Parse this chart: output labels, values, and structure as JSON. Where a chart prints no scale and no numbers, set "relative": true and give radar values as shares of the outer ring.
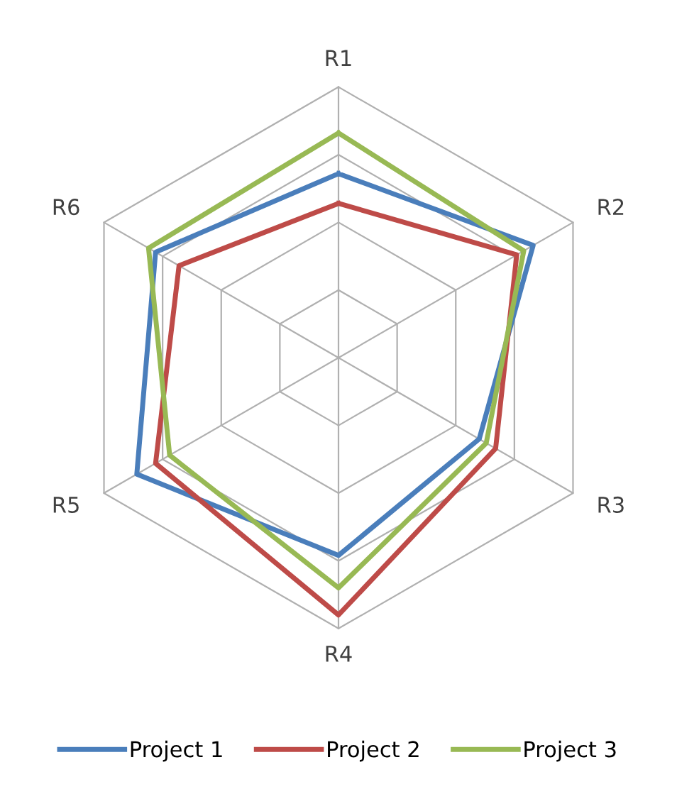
{
  "chart_data": {
    "type": "radar",
    "relative": true,
    "grid": true,
    "legend": "bottom",
    "categories": [
      "R1",
      "R2",
      "R3",
      "R4",
      "R5",
      "R6"
    ],
    "series": [
      {
        "name": "Project 1",
        "color": "#4a7ebb",
        "values": [
          0.68,
          0.83,
          0.6,
          0.73,
          0.86,
          0.78
        ]
      },
      {
        "name": "Project 2",
        "color": "#be4b48",
        "values": [
          0.57,
          0.76,
          0.67,
          0.95,
          0.78,
          0.68
        ]
      },
      {
        "name": "Project 3",
        "color": "#98b954",
        "values": [
          0.83,
          0.79,
          0.63,
          0.85,
          0.72,
          0.81
        ]
      }
    ]
  }
}
